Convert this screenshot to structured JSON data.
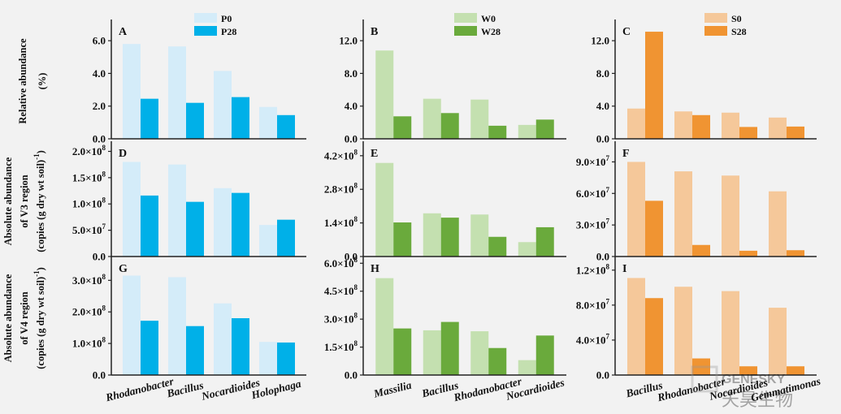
{
  "chart_data": [
    {
      "type": "bar",
      "panel": "A",
      "categories": [
        "Rhodanobacter",
        "Bacillus",
        "Nocardioides",
        "Holophaga"
      ],
      "series": [
        {
          "name": "P0",
          "values": [
            5.8,
            5.65,
            4.15,
            1.95
          ],
          "color": "#d4ecf9"
        },
        {
          "name": "P28",
          "values": [
            2.45,
            2.2,
            2.55,
            1.45
          ],
          "color": "#00b0e8"
        }
      ],
      "ylim": [
        0,
        7.0
      ],
      "ticks": [
        0,
        2,
        4,
        6
      ],
      "tick_labels": [
        "0.0",
        "2.0",
        "4.0",
        "6.0"
      ],
      "legend": "top-right"
    },
    {
      "type": "bar",
      "panel": "B",
      "categories": [
        "Massilia",
        "Bacillus",
        "Rhodanobacter",
        "Nocardioides"
      ],
      "series": [
        {
          "name": "W0",
          "values": [
            10.8,
            4.9,
            4.8,
            1.7
          ],
          "color": "#c4e0b0"
        },
        {
          "name": "W28",
          "values": [
            2.75,
            3.15,
            1.6,
            2.35
          ],
          "color": "#6aaa3c"
        }
      ],
      "ylim": [
        0,
        14.0
      ],
      "ticks": [
        0,
        4,
        8,
        12
      ],
      "tick_labels": [
        "0.0",
        "4.0",
        "8.0",
        "12.0"
      ],
      "legend": "top-right"
    },
    {
      "type": "bar",
      "panel": "C",
      "categories": [
        "Bacillus",
        "Rhodanobacter",
        "Nocardioides",
        "Gemmatimonas"
      ],
      "series": [
        {
          "name": "S0",
          "values": [
            3.7,
            3.35,
            3.2,
            2.6
          ],
          "color": "#f5c89a"
        },
        {
          "name": "S28",
          "values": [
            13.1,
            2.9,
            1.45,
            1.5
          ],
          "color": "#f09432"
        }
      ],
      "ylim": [
        0,
        14.0
      ],
      "ticks": [
        0,
        4,
        8,
        12
      ],
      "tick_labels": [
        "0.0",
        "4.0",
        "8.0",
        "12.0"
      ],
      "legend": "top-right"
    },
    {
      "type": "bar",
      "panel": "D",
      "categories": [
        "Rhodanobacter",
        "Bacillus",
        "Nocardioides",
        "Holophaga"
      ],
      "series": [
        {
          "name": "P0",
          "values": [
            180000000.0,
            175000000.0,
            130000000.0,
            60000000.0
          ],
          "color": "#d4ecf9"
        },
        {
          "name": "P28",
          "values": [
            116000000.0,
            104000000.0,
            121000000.0,
            70000000.0
          ],
          "color": "#00b0e8"
        }
      ],
      "ylim": [
        0,
        210000000.0
      ],
      "ticks": [
        0,
        50000000.0,
        100000000.0,
        150000000.0,
        200000000.0
      ],
      "tick_labels": [
        [
          "0.0",
          ""
        ],
        [
          "5.0×10",
          "7"
        ],
        [
          "1.0×10",
          "8"
        ],
        [
          "1.5×10",
          "8"
        ],
        [
          "2.0×10",
          "8"
        ]
      ]
    },
    {
      "type": "bar",
      "panel": "E",
      "categories": [
        "Massilia",
        "Bacillus",
        "Rhodanobacter",
        "Nocardioides"
      ],
      "series": [
        {
          "name": "W0",
          "values": [
            390000000.0,
            180000000.0,
            175000000.0,
            60000000.0
          ],
          "color": "#c4e0b0"
        },
        {
          "name": "W28",
          "values": [
            142000000.0,
            162000000.0,
            82000000.0,
            122000000.0
          ],
          "color": "#6aaa3c"
        }
      ],
      "ylim": [
        0,
        460000000.0
      ],
      "ticks": [
        0,
        140000000.0,
        280000000.0,
        420000000.0
      ],
      "tick_labels": [
        [
          "0.0",
          ""
        ],
        [
          "1.4×10",
          "8"
        ],
        [
          "2.8×10",
          "8"
        ],
        [
          "4.2×10",
          "8"
        ]
      ]
    },
    {
      "type": "bar",
      "panel": "F",
      "categories": [
        "Bacillus",
        "Rhodanobacter",
        "Nocardioides",
        "Gemmatimonas"
      ],
      "series": [
        {
          "name": "S0",
          "values": [
            90000000.0,
            81000000.0,
            77000000.0,
            62000000.0
          ],
          "color": "#f5c89a"
        },
        {
          "name": "S28",
          "values": [
            53000000.0,
            11000000.0,
            5500000.0,
            6000000.0
          ],
          "color": "#f09432"
        }
      ],
      "ylim": [
        0,
        105000000.0
      ],
      "ticks": [
        0,
        30000000.0,
        60000000.0,
        90000000.0
      ],
      "tick_labels": [
        [
          "0.0",
          ""
        ],
        [
          "3.0×10",
          "7"
        ],
        [
          "6.0×10",
          "7"
        ],
        [
          "9.0×10",
          "7"
        ]
      ]
    },
    {
      "type": "bar",
      "panel": "G",
      "categories": [
        "Rhodanobacter",
        "Bacillus",
        "Nocardioides",
        "Holophaga"
      ],
      "series": [
        {
          "name": "P0",
          "values": [
            315000000.0,
            310000000.0,
            227000000.0,
            105000000.0
          ],
          "color": "#d4ecf9"
        },
        {
          "name": "P28",
          "values": [
            172000000.0,
            155000000.0,
            180000000.0,
            103000000.0
          ],
          "color": "#00b0e8"
        }
      ],
      "ylim": [
        0,
        360000000.0
      ],
      "ticks": [
        0,
        100000000.0,
        200000000.0,
        300000000.0
      ],
      "tick_labels": [
        [
          "0.0",
          ""
        ],
        [
          "1.0×10",
          "8"
        ],
        [
          "2.0×10",
          "8"
        ],
        [
          "3.0×10",
          "8"
        ]
      ]
    },
    {
      "type": "bar",
      "panel": "H",
      "categories": [
        "Massilia",
        "Bacillus",
        "Rhodanobacter",
        "Nocardioides"
      ],
      "series": [
        {
          "name": "W0",
          "values": [
            520000000.0,
            240000000.0,
            235000000.0,
            80000000.0
          ],
          "color": "#c4e0b0"
        },
        {
          "name": "W28",
          "values": [
            250000000.0,
            285000000.0,
            145000000.0,
            212000000.0
          ],
          "color": "#6aaa3c"
        }
      ],
      "ylim": [
        0,
        610000000.0
      ],
      "ticks": [
        0,
        150000000.0,
        300000000.0,
        450000000.0,
        600000000.0
      ],
      "tick_labels": [
        [
          "0.0",
          ""
        ],
        [
          "1.5×10",
          "8"
        ],
        [
          "3.0×10",
          "8"
        ],
        [
          "4.5×10",
          "8"
        ],
        [
          "6.0×10",
          "8"
        ]
      ]
    },
    {
      "type": "bar",
      "panel": "I",
      "categories": [
        "Bacillus",
        "Rhodanobacter",
        "Nocardioides",
        "Gemmatimonas"
      ],
      "series": [
        {
          "name": "S0",
          "values": [
            111000000.0,
            101000000.0,
            96000000.0,
            77000000.0
          ],
          "color": "#f5c89a"
        },
        {
          "name": "S28",
          "values": [
            88000000.0,
            19000000.0,
            10000000.0,
            10000000.0
          ],
          "color": "#f09432"
        }
      ],
      "ylim": [
        0,
        130000000.0
      ],
      "ticks": [
        0,
        40000000.0,
        80000000.0,
        120000000.0
      ],
      "tick_labels": [
        [
          "0.0",
          ""
        ],
        [
          "4.0×10",
          "7"
        ],
        [
          "8.0×10",
          "7"
        ],
        [
          "1.2×10",
          "8"
        ]
      ]
    }
  ],
  "row_titles": [
    [
      "Relative abundance",
      "(%)"
    ],
    [
      "Absolute abundance",
      "of V3 region",
      "(copies (g dry wt soil)",
      "-1",
      ")"
    ],
    [
      "Absolute abundance",
      "of  V4 region",
      "(copies (g dry wt soil)",
      "-1",
      ")"
    ]
  ],
  "watermark": "GENESKY 天昊生物"
}
